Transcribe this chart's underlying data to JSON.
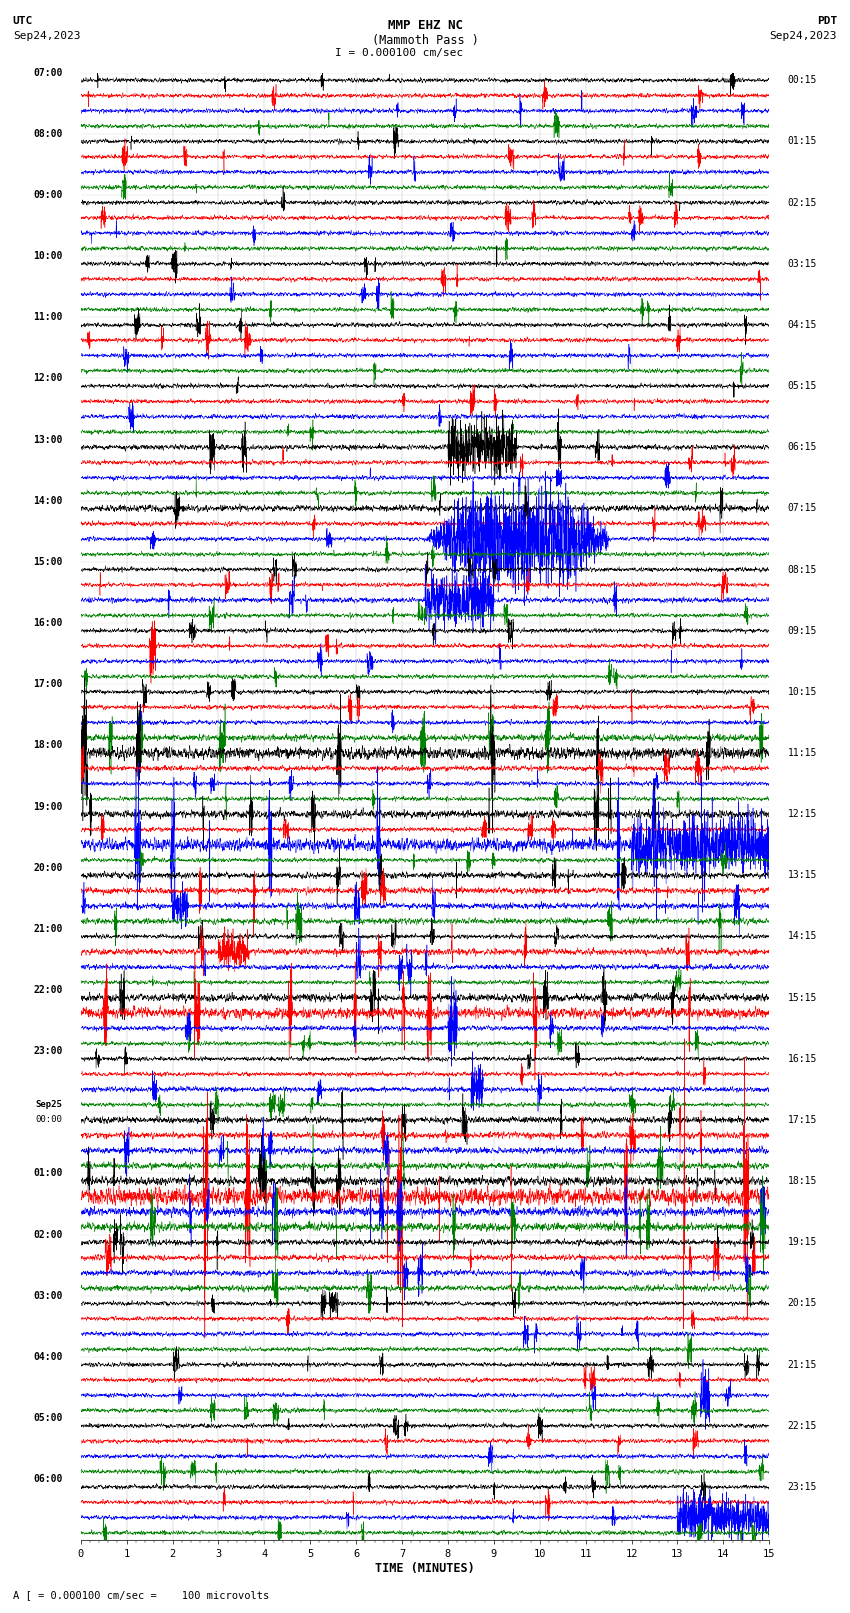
{
  "title_line1": "MMP EHZ NC",
  "title_line2": "(Mammoth Pass )",
  "title_line3": "I = 0.000100 cm/sec",
  "left_header_line1": "UTC",
  "left_header_line2": "Sep24,2023",
  "right_header_line1": "PDT",
  "right_header_line2": "Sep24,2023",
  "xlabel": "TIME (MINUTES)",
  "bottom_note": "A [ = 0.000100 cm/sec =    100 microvolts",
  "xlim": [
    0,
    15
  ],
  "xticks": [
    0,
    1,
    2,
    3,
    4,
    5,
    6,
    7,
    8,
    9,
    10,
    11,
    12,
    13,
    14,
    15
  ],
  "left_labels": [
    "07:00",
    "08:00",
    "09:00",
    "10:00",
    "11:00",
    "12:00",
    "13:00",
    "14:00",
    "15:00",
    "16:00",
    "17:00",
    "18:00",
    "19:00",
    "20:00",
    "21:00",
    "22:00",
    "23:00",
    "Sep25\n00:00",
    "01:00",
    "02:00",
    "03:00",
    "04:00",
    "05:00",
    "06:00"
  ],
  "right_labels": [
    "00:15",
    "01:15",
    "02:15",
    "03:15",
    "04:15",
    "05:15",
    "06:15",
    "07:15",
    "08:15",
    "09:15",
    "10:15",
    "11:15",
    "12:15",
    "13:15",
    "14:15",
    "15:15",
    "16:15",
    "17:15",
    "18:15",
    "19:15",
    "20:15",
    "21:15",
    "22:15",
    "23:15"
  ],
  "n_rows": 24,
  "traces_per_row": 4,
  "colors": [
    "black",
    "red",
    "blue",
    "green"
  ],
  "background_color": "white",
  "seed": 42,
  "fig_width": 8.5,
  "fig_height": 16.13,
  "dpi": 100
}
